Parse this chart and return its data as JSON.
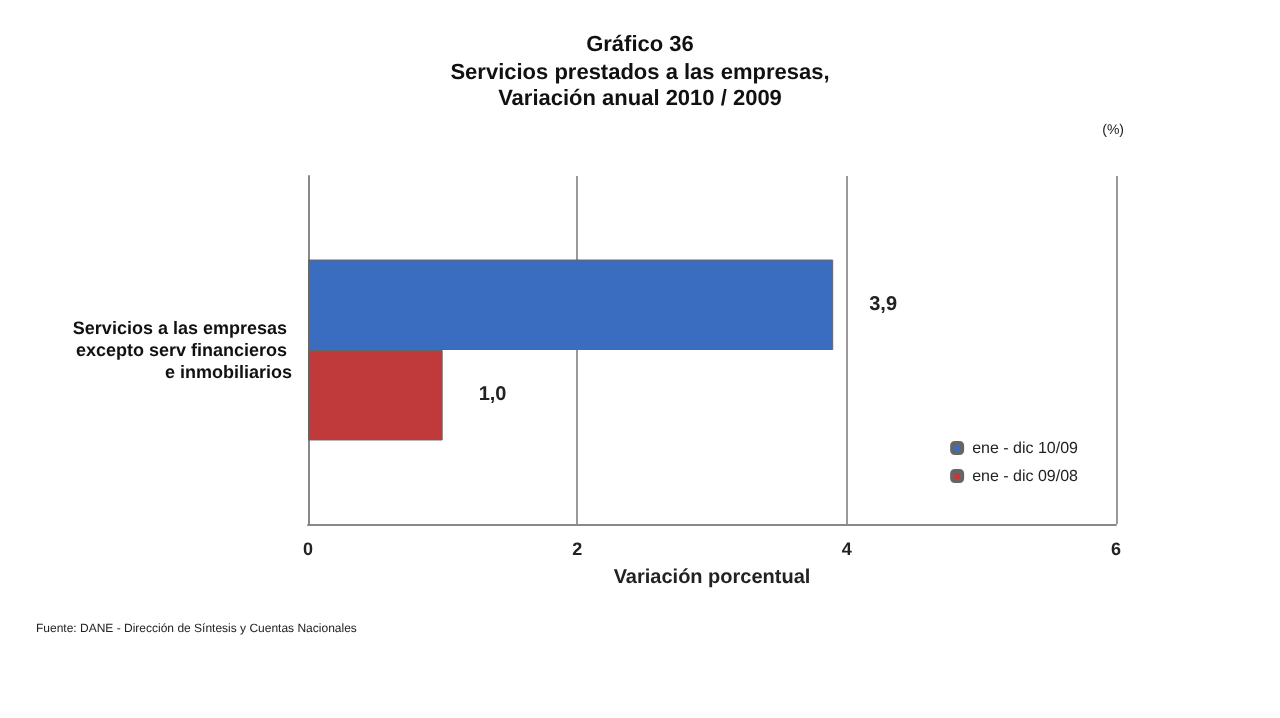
{
  "chart_data": {
    "type": "bar",
    "orientation": "horizontal",
    "title": "Gráfico 36",
    "subtitle": "Servicios prestados a las empresas,\nVariación anual 2010 / 2009",
    "xlabel": "Variación porcentual",
    "categories": [
      "Servicios a las empresas excepto serv financieros e inmobiliarios"
    ],
    "series": [
      {
        "name": "ene - dic 10/09",
        "color": "#3a6cc0",
        "values": [
          3.9
        ],
        "value_labels": [
          "3,9"
        ]
      },
      {
        "name": "ene - dic 09/08",
        "color": "#c0393b",
        "values": [
          1.0
        ],
        "value_labels": [
          "1,0"
        ]
      }
    ],
    "xlim": [
      0,
      6
    ],
    "xticks": [
      0,
      2,
      4,
      6
    ],
    "grid": "x",
    "legend": "right",
    "annotations": [
      "(%)",
      "Fuente: DANE - Dirección de Síntesis y Cuentas Nacionales"
    ]
  }
}
